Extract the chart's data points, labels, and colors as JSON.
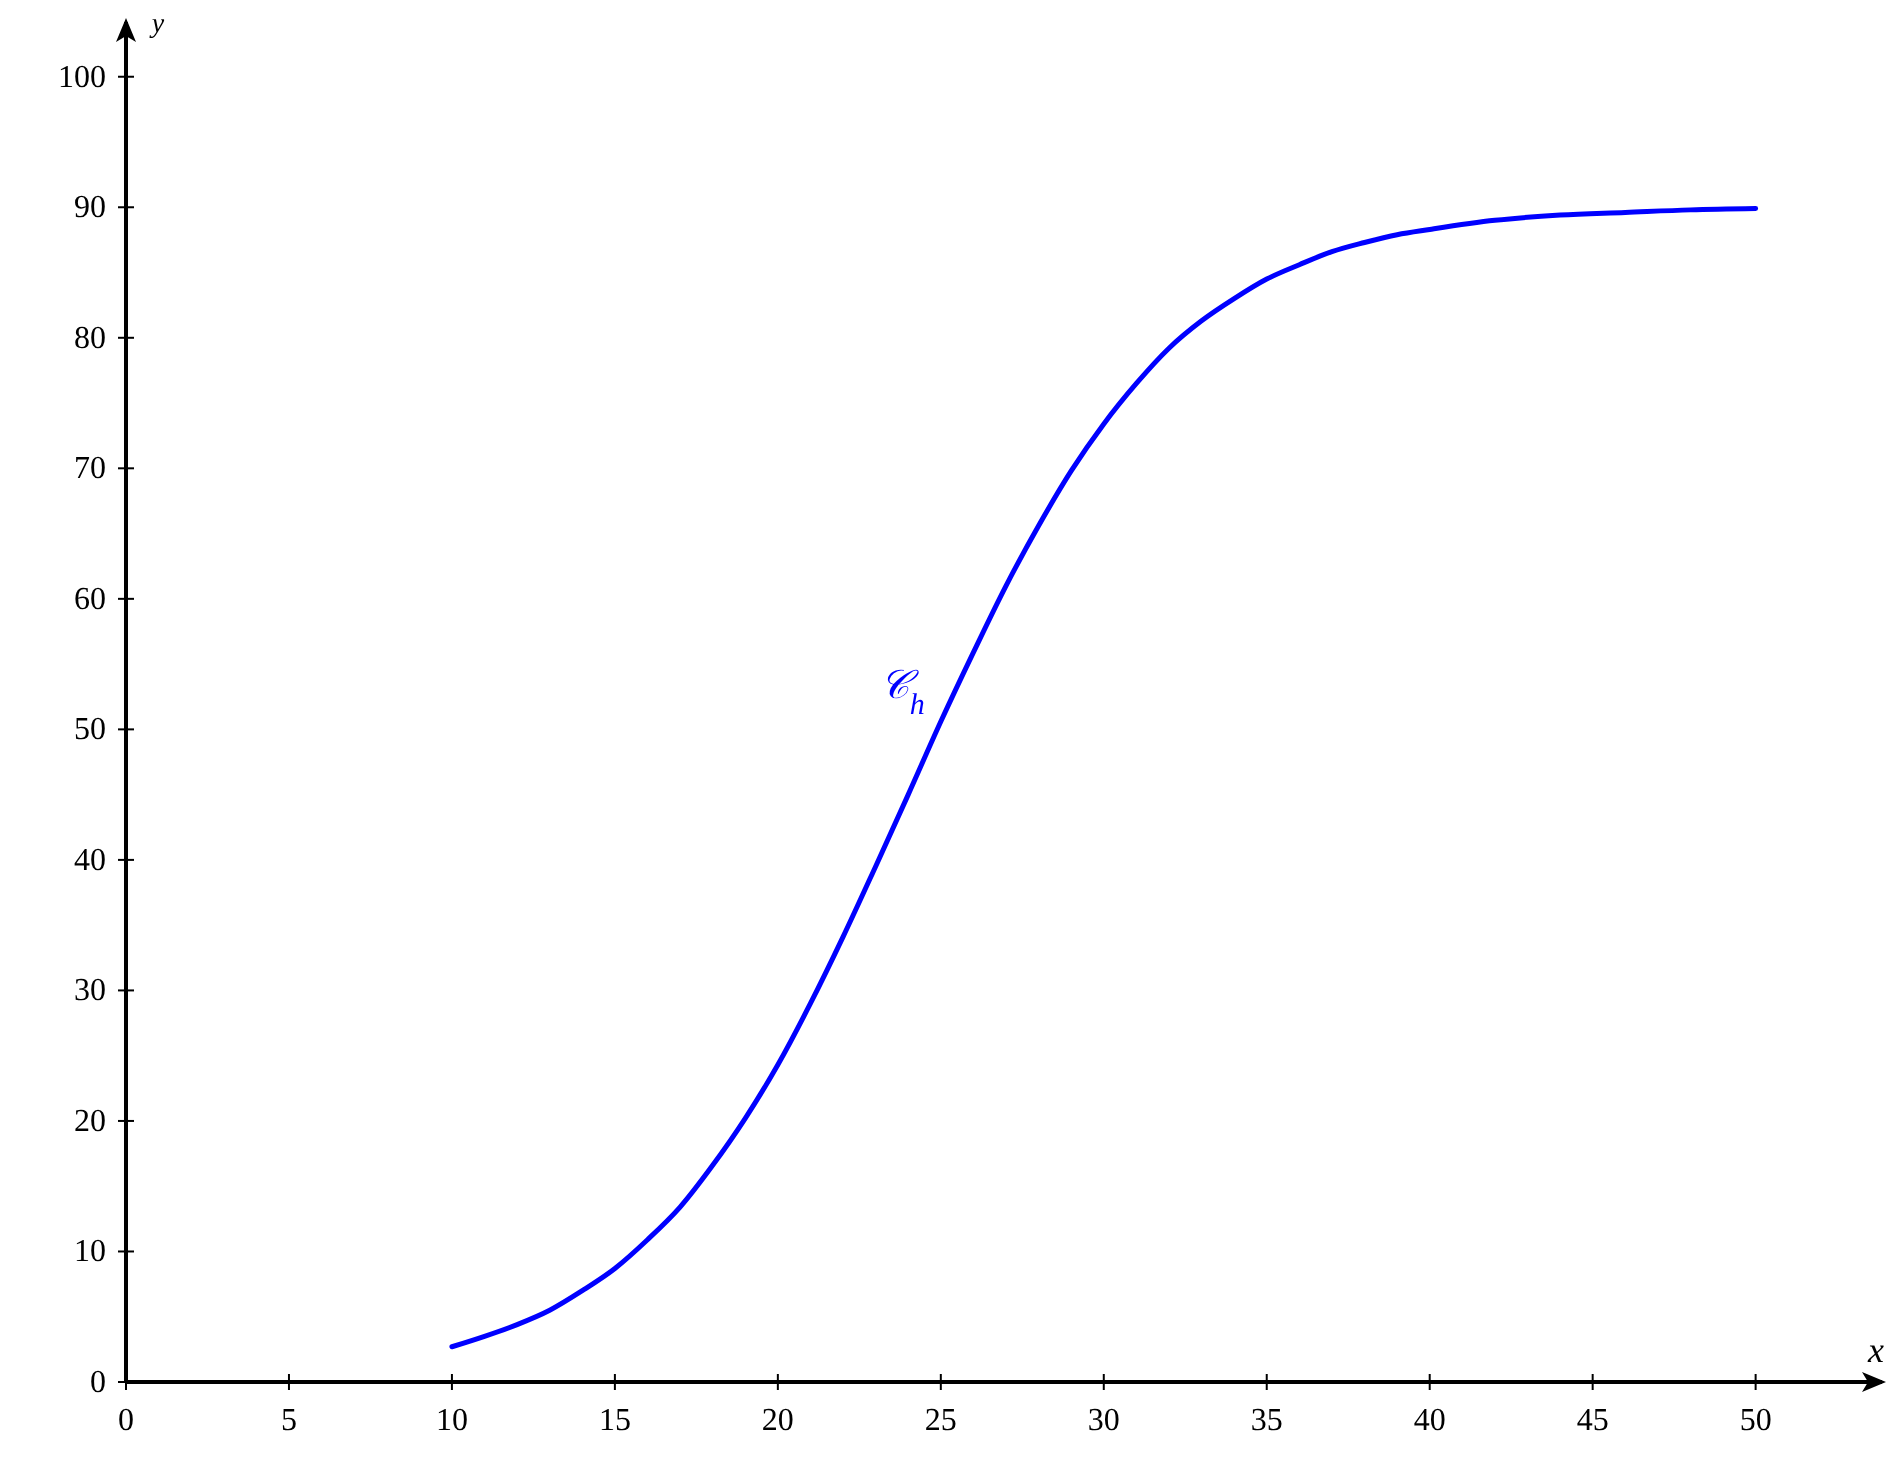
{
  "chart_data": {
    "type": "line",
    "xlabel": "x",
    "ylabel": "y",
    "x": [
      10,
      11,
      12,
      13,
      14,
      15,
      16,
      17,
      18,
      19,
      20,
      21,
      22,
      23,
      24,
      25,
      26,
      27,
      28,
      29,
      30,
      31,
      32,
      33,
      34,
      35,
      36,
      37,
      38,
      39,
      40,
      42,
      44,
      46,
      48,
      50
    ],
    "series": [
      {
        "name": "𝒞$_{h}$",
        "color": "#0000ff",
        "values": [
          2.7,
          3.5,
          4.4,
          5.5,
          7.0,
          8.7,
          10.9,
          13.4,
          16.6,
          20.2,
          24.3,
          29.0,
          34.1,
          39.5,
          45.0,
          50.6,
          55.9,
          61.0,
          65.6,
          69.8,
          73.4,
          76.5,
          79.2,
          81.3,
          83.0,
          84.5,
          85.6,
          86.6,
          87.3,
          87.9,
          88.3,
          89.0,
          89.4,
          89.6,
          89.8,
          89.9
        ]
      }
    ],
    "xlim": [
      0,
      54
    ],
    "ylim": [
      0,
      104.5
    ],
    "xticks": [
      0,
      5,
      10,
      15,
      20,
      25,
      30,
      35,
      40,
      45,
      50
    ],
    "yticks": [
      0,
      10,
      20,
      30,
      40,
      50,
      60,
      70,
      80,
      90,
      100
    ],
    "grid": false,
    "marker": "none",
    "line_style": "solid"
  }
}
